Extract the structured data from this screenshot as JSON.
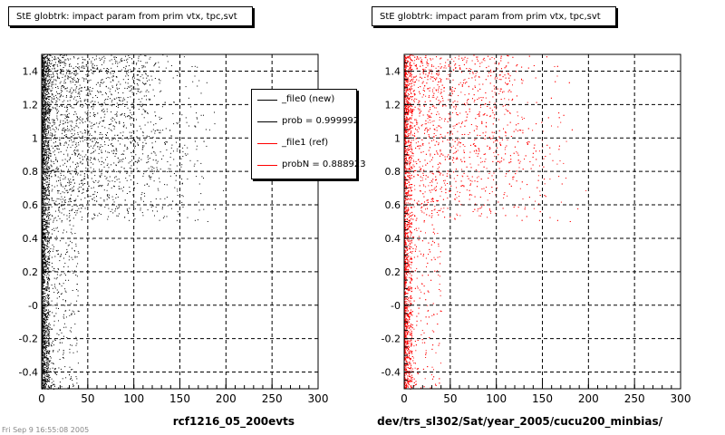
{
  "chart_data": [
    {
      "type": "scatter",
      "title": "StE globtrk: impact param from prim vtx, tpc,svt",
      "xlabel": "rcf1216_05_200evts",
      "ylabel": "",
      "xlim": [
        0,
        300
      ],
      "ylim": [
        -0.5,
        1.5
      ],
      "x_ticks": [
        "0",
        "50",
        "100",
        "150",
        "200",
        "250",
        "300"
      ],
      "y_ticks": [
        "-0.4",
        "-0.2",
        "-0",
        "0.2",
        "0.4",
        "0.6",
        "0.8",
        "1",
        "1.2",
        "1.4"
      ],
      "grid": true,
      "color": "#000000",
      "legend": {
        "position": "top-right",
        "entries": [
          {
            "label": "_file0 (new)",
            "color": "#000000"
          },
          {
            "label": "prob = 0.999992",
            "color": "#000000"
          },
          {
            "label": "_file1 (ref)",
            "color": "#ff0000"
          },
          {
            "label": "probN = 0.888923",
            "color": "#ff0000"
          }
        ]
      }
    },
    {
      "type": "scatter",
      "title": "StE globtrk: impact param from prim vtx, tpc,svt",
      "xlabel": "dev/trs_sl302/Sat/year_2005/cucu200_minbias/",
      "ylabel": "",
      "xlim": [
        0,
        300
      ],
      "ylim": [
        -0.5,
        1.5
      ],
      "x_ticks": [
        "0",
        "50",
        "100",
        "150",
        "200",
        "250",
        "300"
      ],
      "y_ticks": [
        "-0.4",
        "-0.2",
        "-0",
        "0.2",
        "0.4",
        "0.6",
        "0.8",
        "1",
        "1.2",
        "1.4"
      ],
      "grid": true,
      "color": "#ff0000"
    }
  ],
  "footer": "Fri Sep 9 16:55:08 2005"
}
